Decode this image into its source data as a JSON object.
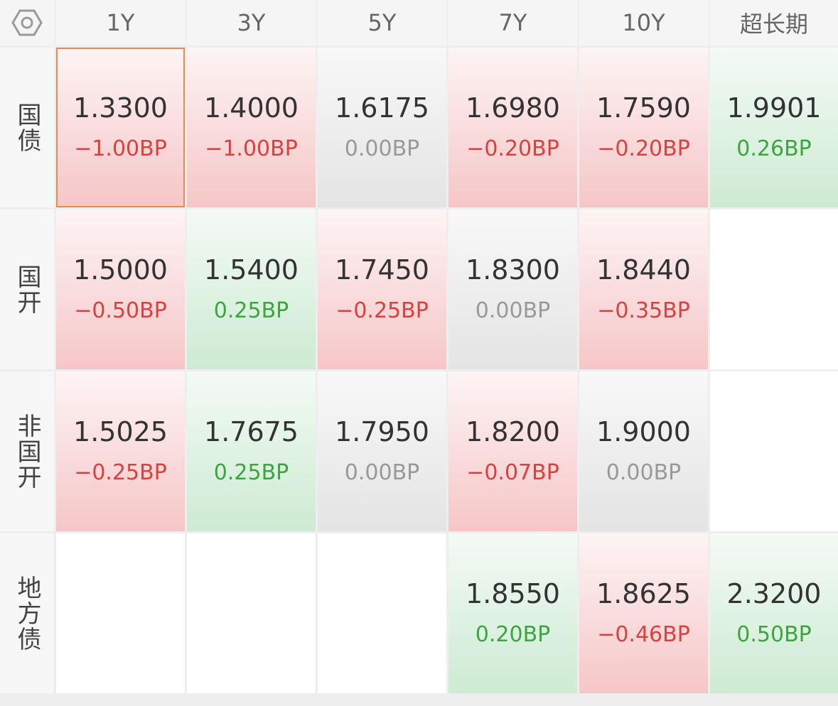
{
  "colors": {
    "up": "#d9413f",
    "down": "#3aa63d",
    "flat": "#999999",
    "selected_border": "#e38b55"
  },
  "corner_icon": "settings-icon",
  "columns": [
    "1Y",
    "3Y",
    "5Y",
    "7Y",
    "10Y",
    "超长期"
  ],
  "rows": [
    {
      "label": "国债",
      "cells": [
        {
          "value": "1.3300",
          "change": "−1.00BP",
          "trend": "up",
          "selected": true
        },
        {
          "value": "1.4000",
          "change": "−1.00BP",
          "trend": "up"
        },
        {
          "value": "1.6175",
          "change": "0.00BP",
          "trend": "flat"
        },
        {
          "value": "1.6980",
          "change": "−0.20BP",
          "trend": "up"
        },
        {
          "value": "1.7590",
          "change": "−0.20BP",
          "trend": "up"
        },
        {
          "value": "1.9901",
          "change": "0.26BP",
          "trend": "down"
        }
      ]
    },
    {
      "label": "国开",
      "cells": [
        {
          "value": "1.5000",
          "change": "−0.50BP",
          "trend": "up"
        },
        {
          "value": "1.5400",
          "change": "0.25BP",
          "trend": "down"
        },
        {
          "value": "1.7450",
          "change": "−0.25BP",
          "trend": "up"
        },
        {
          "value": "1.8300",
          "change": "0.00BP",
          "trend": "flat"
        },
        {
          "value": "1.8440",
          "change": "−0.35BP",
          "trend": "up"
        },
        null
      ]
    },
    {
      "label": "非国开",
      "cells": [
        {
          "value": "1.5025",
          "change": "−0.25BP",
          "trend": "up"
        },
        {
          "value": "1.7675",
          "change": "0.25BP",
          "trend": "down"
        },
        {
          "value": "1.7950",
          "change": "0.00BP",
          "trend": "flat"
        },
        {
          "value": "1.8200",
          "change": "−0.07BP",
          "trend": "up"
        },
        {
          "value": "1.9000",
          "change": "0.00BP",
          "trend": "flat"
        },
        null
      ]
    },
    {
      "label": "地方债",
      "cells": [
        null,
        null,
        null,
        {
          "value": "1.8550",
          "change": "0.20BP",
          "trend": "down"
        },
        {
          "value": "1.8625",
          "change": "−0.46BP",
          "trend": "up"
        },
        {
          "value": "2.3200",
          "change": "0.50BP",
          "trend": "down"
        }
      ]
    }
  ]
}
